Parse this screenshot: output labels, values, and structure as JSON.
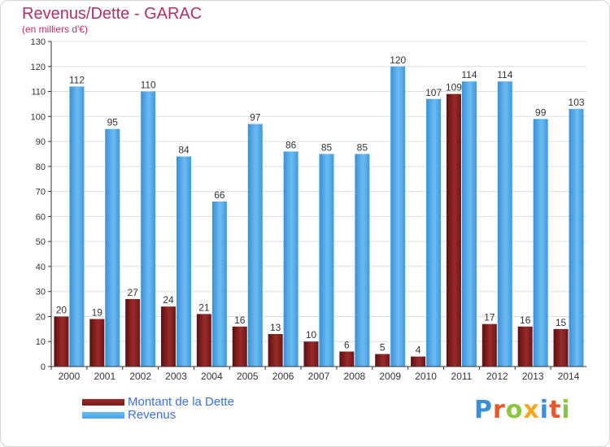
{
  "header": {
    "title": "Revenus/Dette - GARAC",
    "subtitle": "(en milliers d'€)"
  },
  "legend": {
    "debt_label": "Montant de la Dette",
    "revenue_label": "Revenus"
  },
  "logo": {
    "text": "Proxiti",
    "letter_colors": [
      "#3a8fd8",
      "#e8562a",
      "#8cc63f",
      "#f5a623",
      "#3a8fd8",
      "#e8562a",
      "#8cc63f"
    ]
  },
  "colors": {
    "debt": "#7a1a1a",
    "debt_light": "#9a2a2a",
    "revenue": "#4aa3e8",
    "revenue_light": "#6cbcf2",
    "grid": "#dddddd",
    "axis": "#333333",
    "title": "#b0306a",
    "legend_text": "#3f6fe0"
  },
  "chart_data": {
    "type": "bar",
    "title": "Revenus/Dette - GARAC",
    "subtitle": "(en milliers d'€)",
    "categories": [
      "2000",
      "2001",
      "2002",
      "2003",
      "2004",
      "2005",
      "2006",
      "2007",
      "2008",
      "2009",
      "2010",
      "2011",
      "2012",
      "2013",
      "2014"
    ],
    "series": [
      {
        "name": "Montant de la Dette",
        "values": [
          20,
          19,
          27,
          24,
          21,
          16,
          13,
          10,
          6,
          5,
          4,
          109,
          17,
          16,
          15
        ]
      },
      {
        "name": "Revenus",
        "values": [
          112,
          95,
          110,
          84,
          66,
          97,
          86,
          85,
          85,
          120,
          107,
          114,
          114,
          99,
          103
        ]
      }
    ],
    "yticks": [
      0,
      10,
      20,
      30,
      40,
      50,
      60,
      70,
      80,
      90,
      100,
      110,
      120,
      130
    ],
    "ylim": [
      0,
      130
    ],
    "grid": true,
    "legend_position": "bottom-left"
  }
}
